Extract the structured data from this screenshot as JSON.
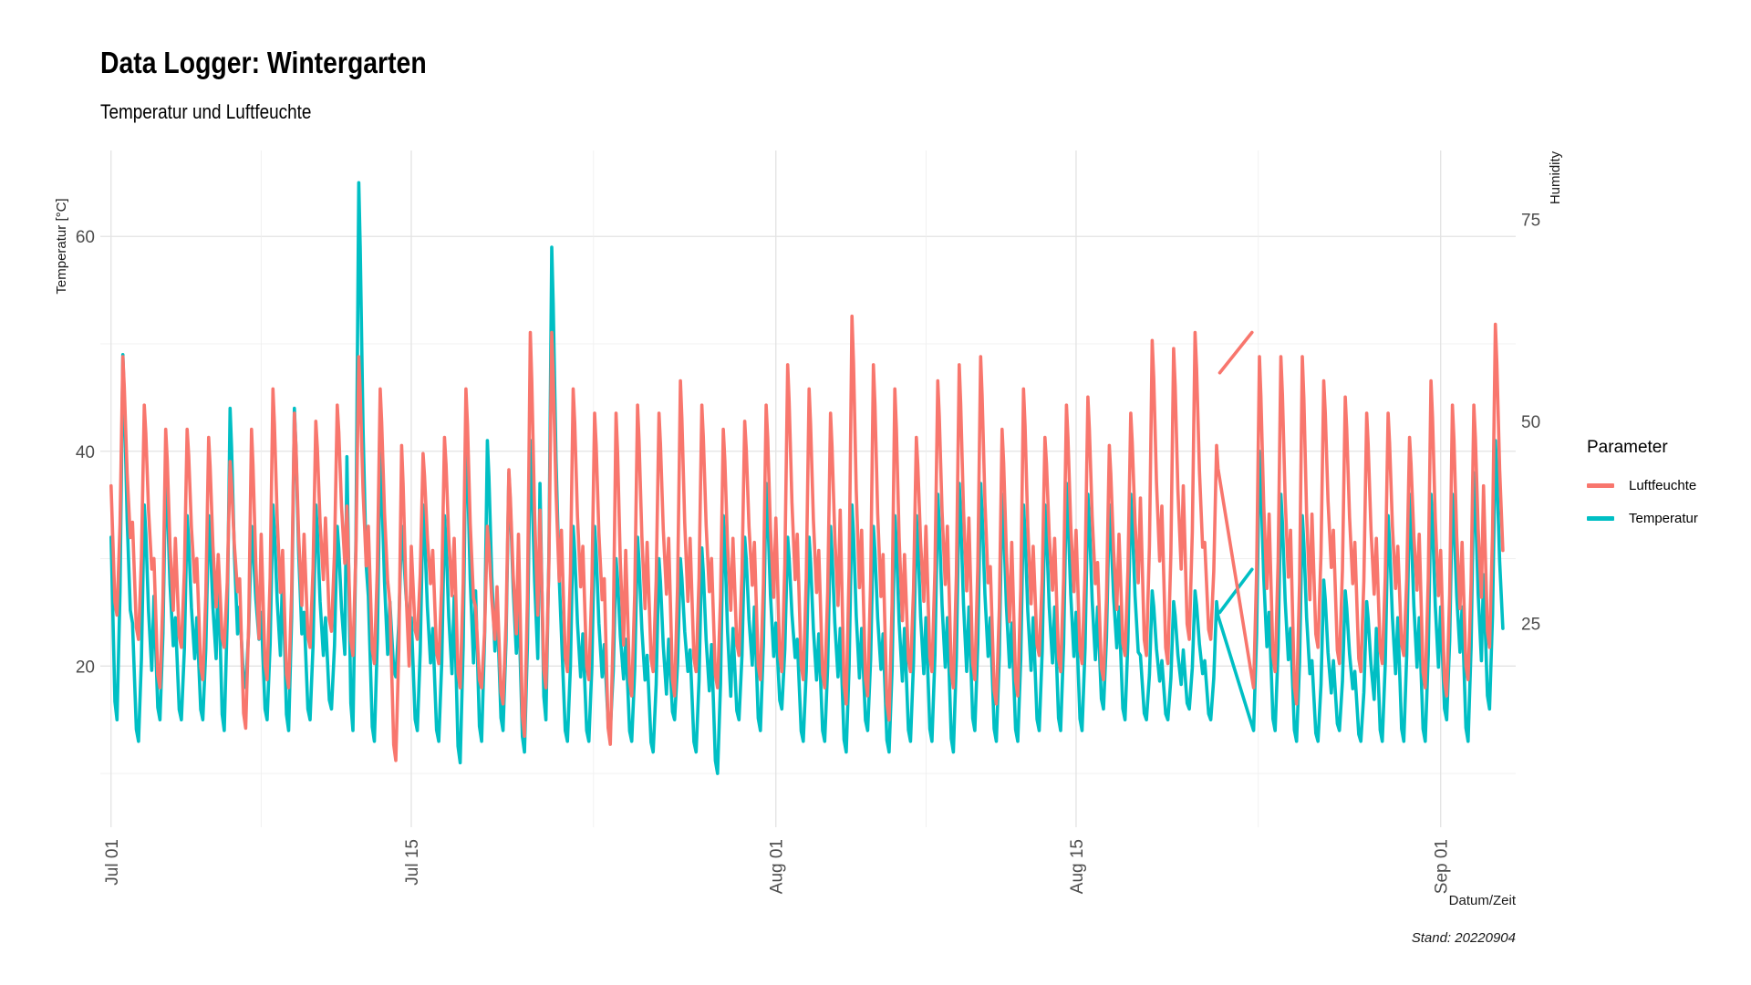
{
  "title": "Data Logger: Wintergarten",
  "subtitle": "Temperatur und Luftfeuchte",
  "caption": "Stand: 20220904",
  "chart_data": {
    "type": "line",
    "title": "Data Logger: Wintergarten",
    "subtitle": "Temperatur und Luftfeuchte",
    "xlabel": "Datum/Zeit",
    "ylabel": "Temperatur [°C]",
    "y2label": "Humidity",
    "x_ticks": [
      "Jul 01",
      "Jul 15",
      "Aug 01",
      "Aug 15",
      "Sep 01"
    ],
    "x_range_days": [
      -0.5,
      65.5
    ],
    "x_tick_days": [
      0,
      14,
      31,
      45,
      62
    ],
    "y_ticks": [
      20,
      40,
      60
    ],
    "ylim": [
      5,
      68
    ],
    "y2_ticks": [
      25,
      50,
      75
    ],
    "y2_relation": "humidity = (temperature - 5.2) * 1.33",
    "legend_title": "Parameter",
    "legend_position": "right",
    "series": [
      {
        "name": "Luftfeuchte",
        "color": "#F8766D",
        "unit": "% (right axis)",
        "daily_min": [
          26,
          23,
          17,
          22,
          18,
          22,
          12,
          18,
          17,
          22,
          24,
          21,
          20,
          8,
          23,
          20,
          17,
          17,
          15,
          11,
          17,
          19,
          18,
          10,
          16,
          19,
          16,
          19,
          17,
          21,
          18,
          19,
          18,
          17,
          15,
          16,
          13,
          19,
          19,
          17,
          18,
          15,
          16,
          21,
          19,
          20,
          18,
          21,
          21,
          20,
          23,
          23,
          26,
          17,
          19,
          15,
          22,
          20,
          19,
          20,
          21,
          17,
          16,
          18,
          22
        ],
        "daily_max": [
          58,
          52,
          49,
          49,
          48,
          45,
          49,
          54,
          51,
          50,
          52,
          58,
          54,
          47,
          46,
          48,
          54,
          37,
          44,
          61,
          61,
          54,
          51,
          51,
          52,
          51,
          55,
          52,
          49,
          50,
          52,
          57,
          54,
          51,
          63,
          57,
          54,
          48,
          55,
          57,
          58,
          49,
          54,
          48,
          52,
          53,
          47,
          51,
          60,
          59,
          61,
          47,
          60,
          58,
          58,
          58,
          55,
          53,
          51,
          51,
          48,
          55,
          52,
          52,
          62
        ]
      },
      {
        "name": "Temperatur",
        "color": "#00BFC4",
        "unit": "°C (left axis)",
        "daily_min": [
          15,
          13,
          15,
          15,
          15,
          14,
          18,
          15,
          14,
          15,
          16,
          14,
          13,
          19,
          14,
          13,
          11,
          13,
          14,
          12,
          15,
          13,
          13,
          14,
          13,
          12,
          15,
          12,
          10,
          15,
          14,
          16,
          13,
          13,
          12,
          14,
          12,
          13,
          13,
          12,
          14,
          13,
          13,
          14,
          14,
          14,
          16,
          15,
          15,
          15,
          16,
          15,
          14,
          14,
          14,
          13,
          13,
          14,
          13,
          13,
          13,
          13,
          15,
          13,
          16
        ],
        "daily_max": [
          49,
          35,
          38,
          34,
          34,
          44,
          33,
          35,
          44,
          35,
          33,
          65,
          40,
          33,
          35,
          34,
          42,
          41,
          38,
          41,
          59,
          33,
          33,
          30,
          32,
          30,
          30,
          31,
          34,
          32,
          37,
          32,
          32,
          33,
          35,
          33,
          34,
          34,
          36,
          37,
          37,
          36,
          35,
          35,
          37,
          36,
          35,
          36,
          27,
          26,
          27,
          26,
          50,
          40,
          36,
          34,
          28,
          27,
          26,
          34,
          36,
          36,
          36,
          38,
          41
        ]
      }
    ],
    "gap": {
      "from_day": 51.7,
      "to_day": 53.2,
      "Luftfeuchte": [
        56,
        61
      ],
      "Temperatur": [
        25,
        29
      ]
    }
  }
}
